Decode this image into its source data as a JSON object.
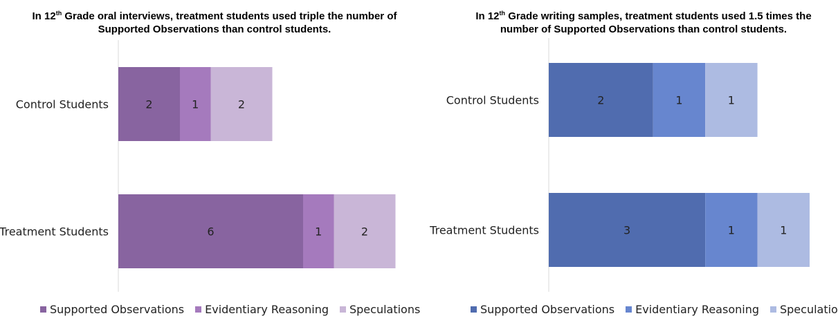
{
  "chart_data": [
    {
      "type": "bar",
      "orientation": "horizontal",
      "stacked": true,
      "title_parts": [
        "In 12",
        "th",
        " Grade oral interviews, treatment students used triple the number of Supported Observations than control students."
      ],
      "categories": [
        "Control Students",
        "Treatment Students"
      ],
      "series": [
        {
          "name": "Supported Observations",
          "values": [
            2,
            6
          ],
          "color": "#8864a0"
        },
        {
          "name": "Evidentiary Reasoning",
          "values": [
            1,
            1
          ],
          "color": "#a57abd"
        },
        {
          "name": "Speculations",
          "values": [
            2,
            2
          ],
          "color": "#c9b6d7"
        }
      ],
      "xlim": [
        0,
        14
      ],
      "grid": false,
      "legend_position": "bottom",
      "data_labels": true
    },
    {
      "type": "bar",
      "orientation": "horizontal",
      "stacked": true,
      "title_parts": [
        "In 12",
        "th",
        " Grade writing samples, treatment students used 1.5 times the number of Supported Observations than control students."
      ],
      "categories": [
        "Control Students",
        "Treatment Students"
      ],
      "series": [
        {
          "name": "Supported Observations",
          "values": [
            2,
            3
          ],
          "color": "#506caf"
        },
        {
          "name": "Evidentiary Reasoning",
          "values": [
            1,
            1
          ],
          "color": "#6786cf"
        },
        {
          "name": "Speculations",
          "values": [
            1,
            1
          ],
          "color": "#adbbe2"
        }
      ],
      "xlim": [
        0,
        6.3
      ],
      "grid": false,
      "legend_position": "bottom",
      "data_labels": true
    }
  ]
}
